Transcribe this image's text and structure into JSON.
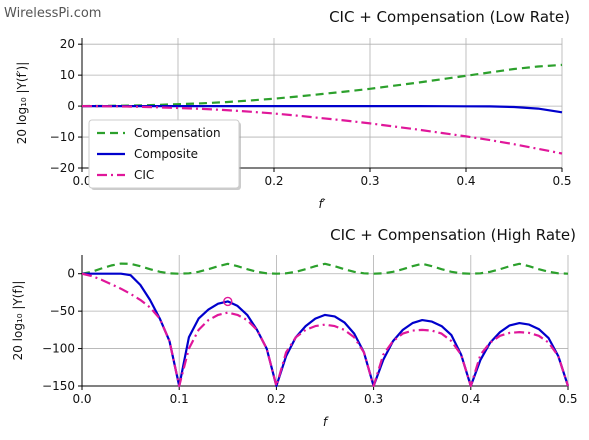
{
  "watermark": "WirelessPi.com",
  "chart_data": [
    {
      "type": "line",
      "title": "CIC + Compensation (Low Rate)",
      "xlabel": "f′",
      "ylabel": "20 log₁₀ |Y(f′)|",
      "xlim": [
        0,
        0.5
      ],
      "ylim": [
        -20,
        22
      ],
      "x_ticks": [
        0.0,
        0.1,
        0.2,
        0.3,
        0.4,
        0.5
      ],
      "x_tick_labels": [
        "0.0",
        "0.1",
        "0.2",
        "0.3",
        "0.4",
        "0.5"
      ],
      "y_ticks": [
        20,
        10,
        0,
        -10,
        -20
      ],
      "y_tick_labels": [
        "20",
        "10",
        "0",
        "−10",
        "−20"
      ],
      "grid": true,
      "legend": "left",
      "x": [
        0,
        0.025,
        0.05,
        0.075,
        0.1,
        0.125,
        0.15,
        0.175,
        0.2,
        0.225,
        0.25,
        0.275,
        0.3,
        0.325,
        0.35,
        0.375,
        0.4,
        0.425,
        0.45,
        0.475,
        0.5
      ],
      "series": [
        {
          "name": "Compensation",
          "color": "#2ca02c",
          "style": "dashed",
          "values": [
            0,
            0.05,
            0.15,
            0.35,
            0.6,
            0.9,
            1.3,
            1.8,
            2.4,
            3.1,
            3.9,
            4.7,
            5.6,
            6.6,
            7.6,
            8.7,
            9.8,
            10.9,
            12.0,
            12.8,
            13.3
          ]
        },
        {
          "name": "Composite",
          "color": "#0000cc",
          "style": "solid",
          "values": [
            0,
            0,
            0,
            0,
            0,
            0,
            0,
            0,
            0,
            0,
            0,
            0,
            0,
            0,
            0,
            -0.02,
            -0.05,
            -0.1,
            -0.3,
            -0.8,
            -2.0
          ]
        },
        {
          "name": "CIC",
          "color": "#e0179a",
          "style": "dashdot",
          "values": [
            0,
            -0.05,
            -0.15,
            -0.35,
            -0.6,
            -0.9,
            -1.3,
            -1.8,
            -2.4,
            -3.1,
            -3.9,
            -4.7,
            -5.6,
            -6.6,
            -7.6,
            -8.7,
            -9.8,
            -11.0,
            -12.3,
            -13.8,
            -15.3
          ]
        }
      ]
    },
    {
      "type": "line",
      "title": "CIC + Compensation (High Rate)",
      "xlabel": "f",
      "ylabel": "20 log₁₀ |Y(f)|",
      "xlim": [
        0,
        0.5
      ],
      "ylim": [
        -150,
        25
      ],
      "x_ticks": [
        0.0,
        0.1,
        0.2,
        0.3,
        0.4,
        0.5
      ],
      "x_tick_labels": [
        "0.0",
        "0.1",
        "0.2",
        "0.3",
        "0.4",
        "0.5"
      ],
      "y_ticks": [
        0,
        -50,
        -100,
        -150
      ],
      "y_tick_labels": [
        "0",
        "−50",
        "−100",
        "−150"
      ],
      "grid": true,
      "x": [
        0,
        0.01,
        0.02,
        0.03,
        0.04,
        0.05,
        0.06,
        0.07,
        0.08,
        0.09,
        0.1,
        0.11,
        0.12,
        0.13,
        0.14,
        0.15,
        0.16,
        0.17,
        0.18,
        0.19,
        0.2,
        0.21,
        0.22,
        0.23,
        0.24,
        0.25,
        0.26,
        0.27,
        0.28,
        0.29,
        0.3,
        0.31,
        0.32,
        0.33,
        0.34,
        0.35,
        0.36,
        0.37,
        0.38,
        0.39,
        0.4,
        0.41,
        0.42,
        0.43,
        0.44,
        0.45,
        0.46,
        0.47,
        0.48,
        0.49,
        0.5
      ],
      "series": [
        {
          "name": "Compensation",
          "color": "#2ca02c",
          "style": "dashed",
          "values": [
            0,
            2.5,
            7,
            11,
            13.5,
            13.3,
            10,
            6,
            2.5,
            0.5,
            0,
            0.5,
            2.5,
            6,
            10,
            13.3,
            10,
            6,
            2.5,
            0.5,
            0,
            0.5,
            2.5,
            6,
            10,
            13.3,
            10,
            6,
            2.5,
            0.5,
            0,
            0.5,
            2.5,
            6,
            10,
            13.3,
            10,
            6,
            2.5,
            0.5,
            0,
            0.5,
            2.5,
            6,
            10,
            13.3,
            10,
            6,
            2.5,
            0.5,
            0
          ]
        },
        {
          "name": "Composite",
          "color": "#0000cc",
          "style": "solid",
          "values": [
            0,
            0,
            0,
            0,
            0,
            -2,
            -15,
            -35,
            -60,
            -90,
            -150,
            -85,
            -60,
            -48,
            -40,
            -37,
            -43,
            -55,
            -75,
            -100,
            -150,
            -110,
            -85,
            -70,
            -60,
            -55,
            -57,
            -65,
            -80,
            -105,
            -150,
            -115,
            -90,
            -75,
            -66,
            -62,
            -64,
            -70,
            -82,
            -108,
            -150,
            -115,
            -92,
            -78,
            -69,
            -66,
            -68,
            -74,
            -86,
            -110,
            -150
          ]
        },
        {
          "name": "CIC",
          "color": "#e0179a",
          "style": "dashdot",
          "values": [
            0,
            -3,
            -8,
            -14,
            -20,
            -27,
            -35,
            -45,
            -60,
            -90,
            -150,
            -100,
            -75,
            -62,
            -55,
            -52,
            -55,
            -62,
            -75,
            -100,
            -150,
            -105,
            -85,
            -75,
            -70,
            -68,
            -70,
            -75,
            -85,
            -105,
            -150,
            -108,
            -90,
            -80,
            -76,
            -75,
            -76,
            -80,
            -90,
            -108,
            -150,
            -108,
            -92,
            -83,
            -79,
            -78,
            -79,
            -83,
            -92,
            -110,
            -150
          ]
        }
      ],
      "annotation_marker": {
        "x": 0.15,
        "y": -37,
        "color": "#e0179a"
      }
    }
  ]
}
